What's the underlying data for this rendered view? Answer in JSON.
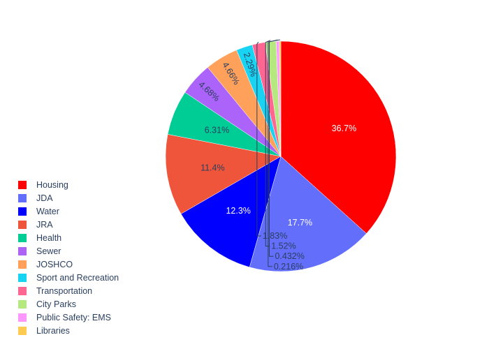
{
  "chart_data": {
    "type": "pie",
    "title": "",
    "labels": [
      "Housing",
      "JDA",
      "Water",
      "JRA",
      "Health",
      "Sewer",
      "JOSHCO",
      "Sport and Recreation",
      "Transportation",
      "City Parks",
      "Public Safety: EMS",
      "Libraries"
    ],
    "values": [
      36.7,
      17.7,
      12.3,
      11.4,
      6.31,
      4.68,
      4.66,
      2.29,
      1.83,
      1.52,
      0.432,
      0.216
    ],
    "value_labels": [
      "36.7%",
      "17.7%",
      "12.3%",
      "11.4%",
      "6.31%",
      "4.68%",
      "4.66%",
      "2.29%",
      "1.83%",
      "1.52%",
      "0.432%",
      "0.216%"
    ],
    "colors": [
      "#ff0000",
      "#636efa",
      "#0000ff",
      "#ef553b",
      "#00cc96",
      "#ab63fa",
      "#ffa15a",
      "#19d3f3",
      "#ff6692",
      "#b6e880",
      "#ff97ff",
      "#fecb52"
    ],
    "direction": "clockwise",
    "start": "top",
    "legend_position": "bottom-left"
  }
}
